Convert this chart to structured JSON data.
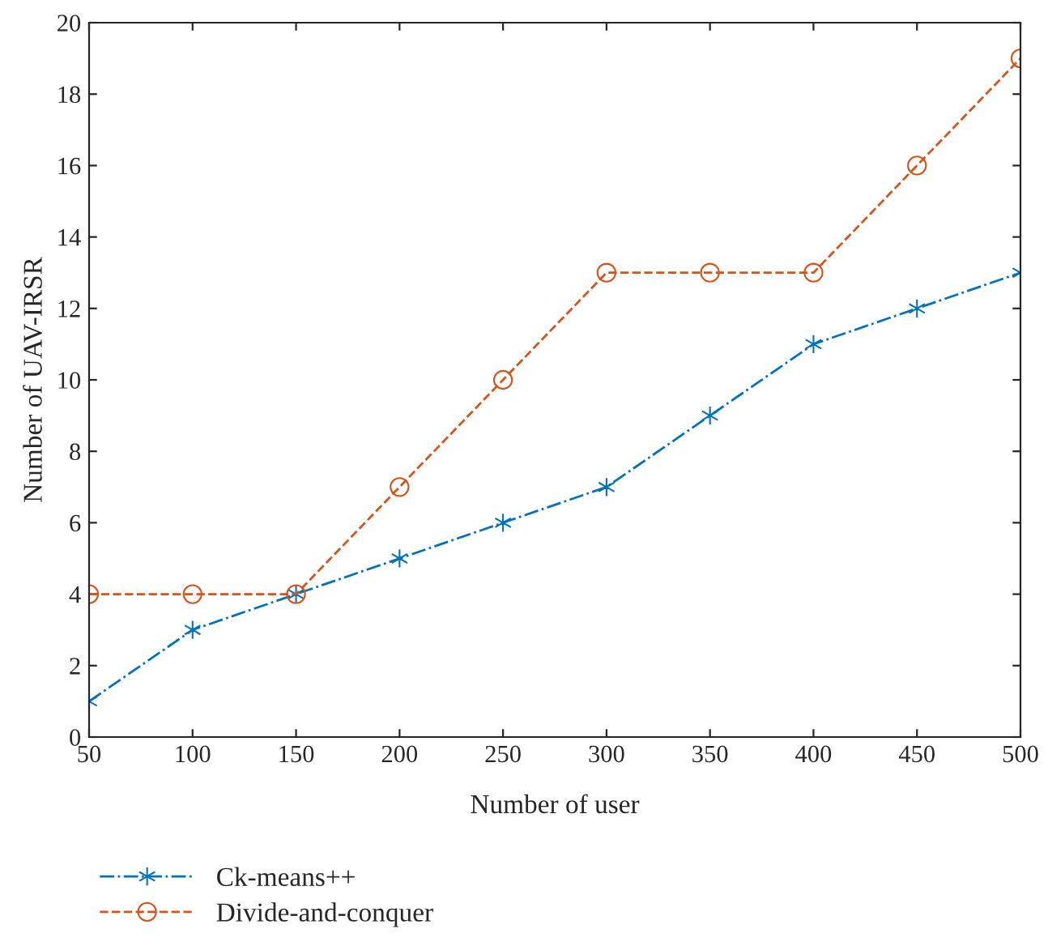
{
  "chart_data": {
    "type": "line",
    "xlabel": "Number of user",
    "ylabel": "Number of UAV-IRSR",
    "x": [
      50,
      100,
      150,
      200,
      250,
      300,
      350,
      400,
      450,
      500
    ],
    "series": [
      {
        "name": "Ck-means++",
        "color": "#0072bd",
        "marker": "cross",
        "line_style": "dashdot",
        "values": [
          1,
          3,
          4,
          5,
          6,
          7,
          9,
          11,
          12,
          13
        ]
      },
      {
        "name": "Divide-and-conquer",
        "color": "#d95319",
        "marker": "circle",
        "line_style": "dashed",
        "values": [
          4,
          4,
          4,
          7,
          10,
          13,
          13,
          13,
          16,
          19
        ]
      }
    ],
    "xlim": [
      50,
      500
    ],
    "xticks": [
      50,
      100,
      150,
      200,
      250,
      300,
      350,
      400,
      450,
      500
    ],
    "ylim": [
      0,
      20
    ],
    "yticks": [
      0,
      2,
      4,
      6,
      8,
      10,
      12,
      14,
      16,
      18,
      20
    ],
    "grid": false,
    "legend": "bottom left"
  }
}
